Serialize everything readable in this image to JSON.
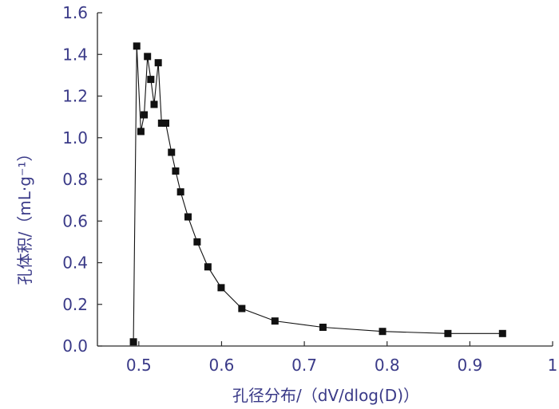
{
  "chart_data": {
    "type": "line",
    "title": "",
    "xlabel": "孔径分布/（dV/dlog(D)）",
    "ylabel": "孔体积/（mL·g⁻¹）",
    "xlim": [
      0.45,
      1.0
    ],
    "ylim": [
      0.0,
      1.6
    ],
    "x_ticks": [
      "0.5",
      "0.6",
      "0.7",
      "0.8",
      "0.9",
      "1"
    ],
    "y_ticks": [
      "0.0",
      "0.2",
      "0.4",
      "0.6",
      "0.8",
      "1.0",
      "1.2",
      "1.4",
      "1.6"
    ],
    "grid": false,
    "legend": "none",
    "series": [
      {
        "marker": "square",
        "color": "#111111",
        "x": [
          0.4935,
          0.4975,
          0.5025,
          0.5065,
          0.5105,
          0.5145,
          0.5185,
          0.5235,
          0.5275,
          0.5325,
          0.5395,
          0.5445,
          0.5505,
          0.5595,
          0.5705,
          0.5835,
          0.5995,
          0.6245,
          0.6645,
          0.7225,
          0.7945,
          0.8735,
          0.9395
        ],
        "y": [
          0.02,
          1.44,
          1.03,
          1.11,
          1.39,
          1.28,
          1.16,
          1.36,
          1.07,
          1.07,
          0.93,
          0.84,
          0.74,
          0.62,
          0.5,
          0.38,
          0.28,
          0.18,
          0.12,
          0.09,
          0.07,
          0.06,
          0.06
        ]
      }
    ],
    "colors": {
      "axis": "#2b2b2b",
      "text": "#3a3a88",
      "series": "#111111"
    }
  }
}
